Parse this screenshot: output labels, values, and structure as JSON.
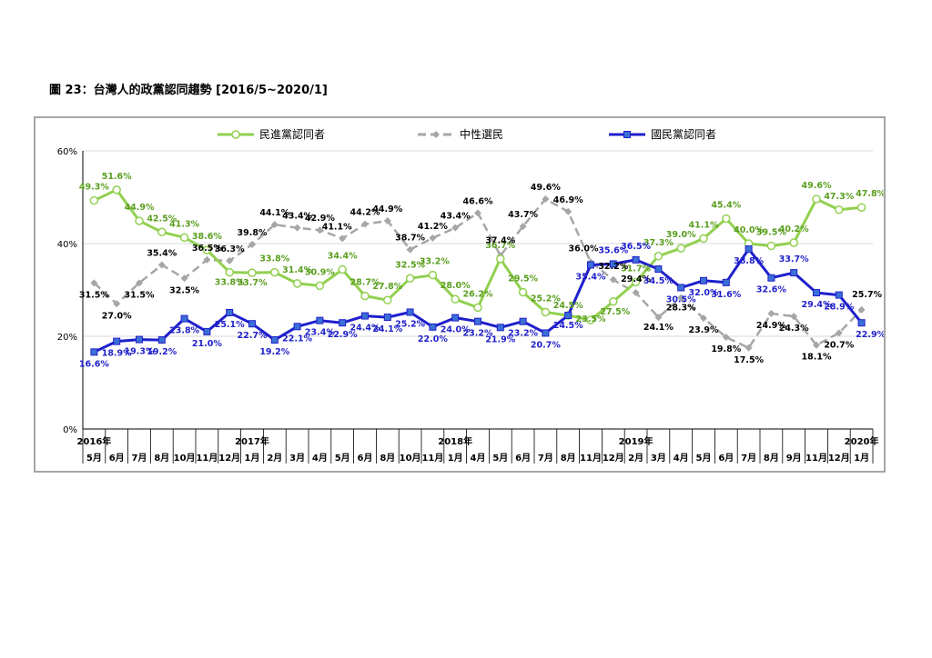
{
  "title": "圖 23：台灣人的政黨認同趨勢 [2016/5~2020/1]",
  "chart_data": {
    "type": "line",
    "title": "圖 23：台灣人的政黨認同趨勢 [2016/5~2020/1]",
    "xlabel": "",
    "ylabel": "",
    "ylim": [
      0,
      60
    ],
    "yticks": [
      "0%",
      "20%",
      "40%",
      "60%"
    ],
    "grid": true,
    "legend_position": "top",
    "categories": [
      "5月",
      "6月",
      "7月",
      "8月",
      "10月",
      "11月",
      "12月",
      "1月",
      "2月",
      "3月",
      "4月",
      "5月",
      "6月",
      "8月",
      "10月",
      "11月",
      "1月",
      "4月",
      "5月",
      "6月",
      "7月",
      "8月",
      "11月",
      "12月",
      "2月",
      "3月",
      "4月",
      "5月",
      "6月",
      "7月",
      "8月",
      "9月",
      "11月",
      "12月",
      "1月"
    ],
    "year_labels": [
      {
        "label": "2016年",
        "index": 0
      },
      {
        "label": "2017年",
        "index": 7
      },
      {
        "label": "2018年",
        "index": 16
      },
      {
        "label": "2019年",
        "index": 24
      },
      {
        "label": "2020年",
        "index": 34
      }
    ],
    "series": [
      {
        "name": "民進黨認同者",
        "color": "#92d050",
        "marker": "circle",
        "values": [
          49.3,
          51.6,
          44.9,
          42.5,
          41.3,
          38.6,
          33.8,
          33.7,
          33.8,
          31.4,
          30.9,
          34.4,
          28.7,
          27.8,
          32.5,
          33.2,
          28.0,
          26.2,
          36.7,
          29.5,
          25.2,
          24.5,
          23.5,
          27.5,
          31.7,
          37.3,
          39.0,
          41.1,
          45.4,
          40.0,
          39.5,
          40.2,
          49.6,
          47.3,
          47.8
        ]
      },
      {
        "name": "中性選民",
        "color": "#a6a6a6",
        "marker": "diamond",
        "values": [
          31.5,
          27.0,
          31.5,
          35.4,
          32.5,
          36.5,
          36.3,
          39.8,
          44.1,
          43.4,
          42.9,
          41.1,
          44.2,
          44.9,
          38.7,
          41.2,
          43.4,
          46.6,
          37.4,
          43.7,
          49.6,
          46.9,
          36.0,
          32.2,
          29.4,
          24.1,
          28.3,
          23.9,
          19.8,
          17.5,
          24.9,
          24.3,
          18.1,
          20.7,
          25.7
        ]
      },
      {
        "name": "國民黨認同者",
        "color": "#1f1fcc",
        "marker": "square",
        "values": [
          16.6,
          18.9,
          19.3,
          19.2,
          23.8,
          21.0,
          25.1,
          22.7,
          19.2,
          22.1,
          23.4,
          22.9,
          24.4,
          24.1,
          25.2,
          22.0,
          24.0,
          23.2,
          21.9,
          23.2,
          20.7,
          24.5,
          35.4,
          35.6,
          36.5,
          34.5,
          30.5,
          32.0,
          31.6,
          38.8,
          32.6,
          33.7,
          29.4,
          28.9,
          22.9
        ]
      }
    ],
    "data_labels": [
      [
        "49.3%",
        "51.6%",
        "44.9%",
        "42.5%",
        "41.3%",
        "38.6%",
        "33.8%",
        "33.7%",
        "33.8%",
        "31.4%",
        "30.9%",
        "34.4%",
        "28.7%",
        "27.8%",
        "32.5%",
        "33.2%",
        "28.0%",
        "26.2%",
        "36.7%",
        "29.5%",
        "25.2%",
        "24.5%",
        "23.5%",
        "27.5%",
        "31.7%",
        "37.3%",
        "39.0%",
        "41.1%",
        "45.4%",
        "40.0%",
        "39.5%",
        "40.2%",
        "49.6%",
        "47.3%",
        "47.8%"
      ],
      [
        "31.5%",
        "27.0%",
        "31.5%",
        "35.4%",
        "32.5%",
        "36.5%",
        "36.3%",
        "39.8%",
        "44.1%",
        "43.4%",
        "42.9%",
        "41.1%",
        "44.2%",
        "44.9%",
        "38.7%",
        "41.2%",
        "43.4%",
        "46.6%",
        "37.4%",
        "43.7%",
        "49.6%",
        "46.9%",
        "36.0%",
        "32.2%",
        "29.4%",
        "24.1%",
        "28.3%",
        "23.9%",
        "19.8%",
        "17.5%",
        "24.9%",
        "24.3%",
        "18.1%",
        "20.7%",
        "25.7%"
      ],
      [
        "16.6%",
        "18.9%",
        "19.3%",
        "19.2%",
        "23.8%",
        "21.0%",
        "25.1%",
        "22.7%",
        "19.2%",
        "22.1%",
        "23.4%",
        "22.9%",
        "24.4%",
        "24.1%",
        "25.2%",
        "22.0%",
        "24.0%",
        "23.2%",
        "21.9%",
        "23.2%",
        "20.7%",
        "24.5%",
        "35.4%",
        "35.6%",
        "36.5%",
        "34.5%",
        "30.5%",
        "32.0%",
        "31.6%",
        "38.8%",
        "32.6%",
        "33.7%",
        "29.4%",
        "28.9%",
        "22.9%"
      ]
    ],
    "label_colors": [
      "#5a9e1e",
      "#000000",
      "#1f1fcc"
    ]
  }
}
